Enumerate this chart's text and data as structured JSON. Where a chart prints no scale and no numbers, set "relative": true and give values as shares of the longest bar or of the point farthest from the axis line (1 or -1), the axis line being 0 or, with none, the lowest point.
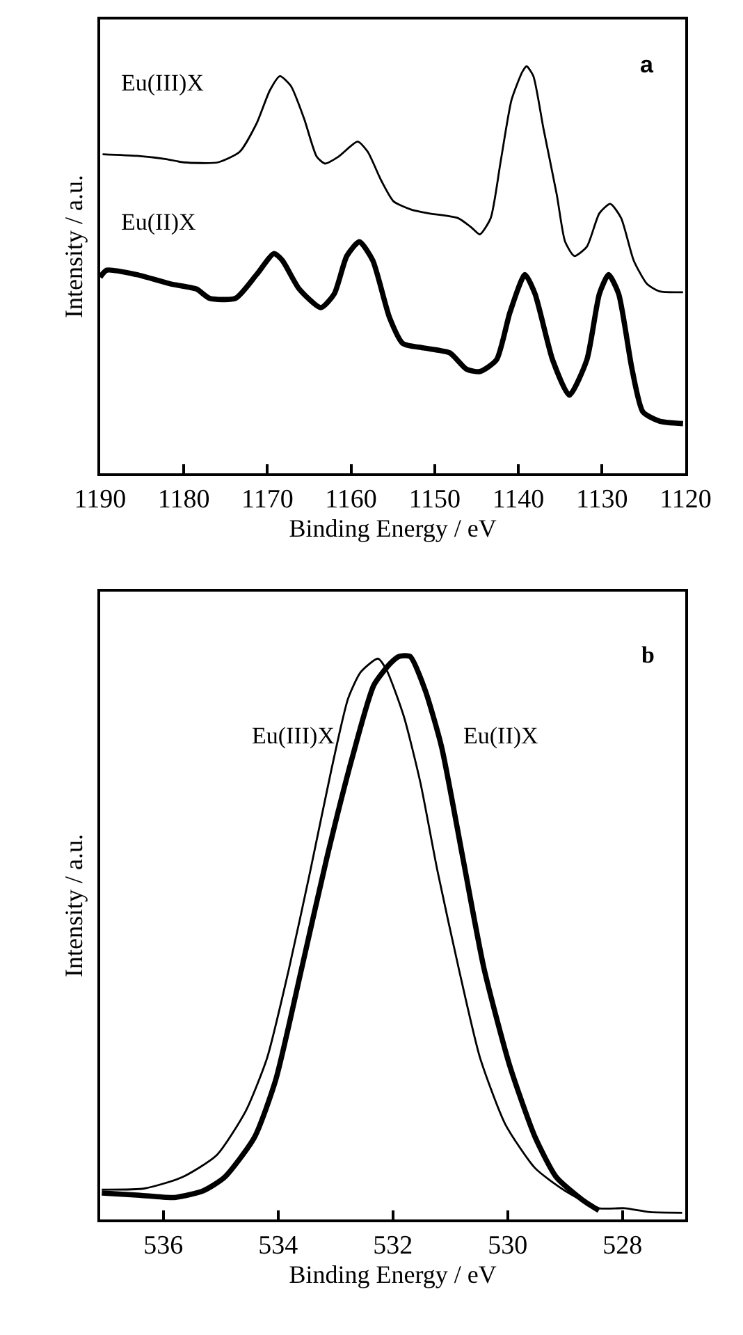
{
  "chart_data": [
    {
      "type": "line",
      "xlabel": "Binding Energy / eV",
      "ylabel": "Intensity / a.u.",
      "annotations": [
        "a"
      ],
      "relative": true,
      "xlim": [
        1190,
        1120
      ],
      "xticks": [
        1190,
        1180,
        1170,
        1160,
        1150,
        1140,
        1130,
        1120
      ],
      "series": [
        {
          "name": "Eu(III)X",
          "color": "#000000",
          "x": [
            1189.7,
            1185.6,
            1182.1,
            1180.0,
            1175.9,
            1173.3,
            1171.3,
            1169.7,
            1168.5,
            1167.2,
            1165.6,
            1164.1,
            1163.1,
            1161.5,
            1159.2,
            1158.0,
            1156.4,
            1154.9,
            1152.8,
            1150.8,
            1147.2,
            1145.6,
            1144.6,
            1143.3,
            1142.1,
            1140.8,
            1139.5,
            1139.0,
            1138.2,
            1137.0,
            1135.4,
            1134.4,
            1133.3,
            1131.8,
            1130.3,
            1129.0,
            1127.7,
            1126.2,
            1124.6,
            1123.1,
            1120.3
          ],
          "values": [
            0.784,
            0.78,
            0.772,
            0.764,
            0.764,
            0.79,
            0.859,
            0.941,
            0.976,
            0.952,
            0.871,
            0.778,
            0.761,
            0.778,
            0.815,
            0.79,
            0.72,
            0.668,
            0.648,
            0.639,
            0.627,
            0.604,
            0.587,
            0.627,
            0.767,
            0.918,
            0.987,
            1.0,
            0.976,
            0.848,
            0.685,
            0.569,
            0.534,
            0.557,
            0.639,
            0.662,
            0.627,
            0.523,
            0.465,
            0.447,
            0.445
          ]
        },
        {
          "name": "Eu(II)X",
          "color": "#000000",
          "x": [
            1190.0,
            1189.2,
            1185.6,
            1181.5,
            1178.5,
            1176.9,
            1173.8,
            1171.3,
            1169.2,
            1168.2,
            1166.2,
            1163.6,
            1162.0,
            1160.5,
            1159.0,
            1157.4,
            1155.4,
            1153.8,
            1151.3,
            1148.2,
            1146.2,
            1144.6,
            1142.6,
            1141.0,
            1139.2,
            1138.0,
            1135.9,
            1133.9,
            1131.8,
            1130.3,
            1129.2,
            1128.0,
            1126.4,
            1125.1,
            1123.1,
            1120.3
          ],
          "values": [
            0.482,
            0.499,
            0.488,
            0.465,
            0.453,
            0.43,
            0.43,
            0.488,
            0.54,
            0.523,
            0.453,
            0.407,
            0.441,
            0.534,
            0.569,
            0.523,
            0.383,
            0.319,
            0.308,
            0.296,
            0.256,
            0.25,
            0.279,
            0.395,
            0.488,
            0.441,
            0.279,
            0.192,
            0.279,
            0.441,
            0.488,
            0.441,
            0.256,
            0.151,
            0.128,
            0.122
          ]
        }
      ]
    },
    {
      "type": "line",
      "xlabel": "Binding Energy / eV",
      "ylabel": "Intensity / a.u.",
      "annotations": [
        "b"
      ],
      "relative": true,
      "xlim": [
        537.1,
        526.9
      ],
      "xticks": [
        536,
        534,
        532,
        530,
        528
      ],
      "series": [
        {
          "name": "Eu(III)X",
          "color": "#000000",
          "x": [
            537.07,
            536.33,
            535.67,
            535.07,
            534.56,
            534.19,
            533.81,
            533.44,
            533.07,
            532.78,
            532.56,
            532.26,
            532.11,
            531.81,
            531.52,
            531.22,
            530.85,
            530.48,
            530.04,
            529.52,
            529.0,
            528.41,
            527.96,
            527.52,
            526.96
          ],
          "values": [
            0.053,
            0.055,
            0.075,
            0.114,
            0.193,
            0.287,
            0.445,
            0.618,
            0.799,
            0.925,
            0.972,
            0.996,
            0.976,
            0.894,
            0.776,
            0.618,
            0.445,
            0.287,
            0.169,
            0.091,
            0.051,
            0.02,
            0.02,
            0.013,
            0.012
          ]
        },
        {
          "name": "Eu(II)X",
          "color": "#000000",
          "x": [
            537.07,
            536.41,
            535.81,
            535.3,
            534.93,
            534.41,
            534.04,
            533.59,
            533.15,
            532.7,
            532.33,
            532.04,
            531.89,
            531.7,
            531.44,
            531.15,
            530.78,
            530.41,
            529.96,
            529.52,
            529.15,
            528.7,
            528.41
          ],
          "values": [
            0.047,
            0.043,
            0.039,
            0.051,
            0.075,
            0.146,
            0.248,
            0.445,
            0.642,
            0.823,
            0.949,
            0.988,
            1.0,
            1.0,
            0.941,
            0.839,
            0.642,
            0.445,
            0.272,
            0.146,
            0.075,
            0.035,
            0.016
          ]
        }
      ]
    }
  ]
}
